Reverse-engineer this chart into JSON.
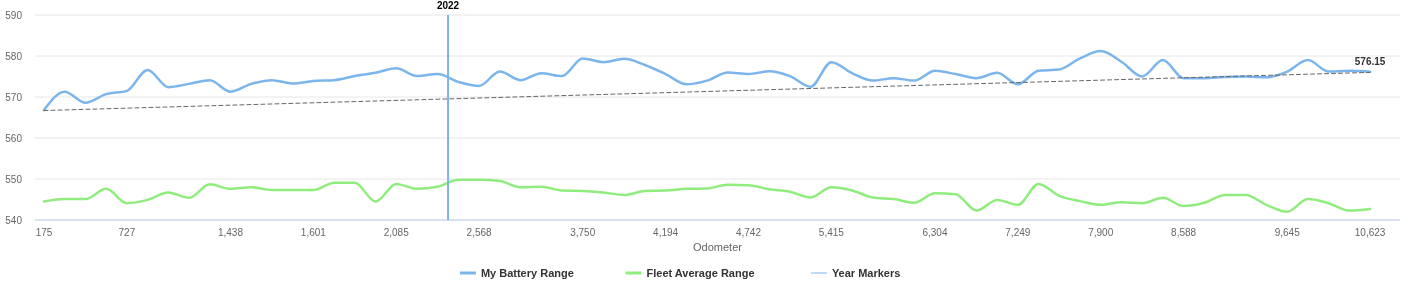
{
  "chart_data": {
    "type": "line",
    "xlabel": "Odometer",
    "categories": [
      "175",
      null,
      null,
      null,
      "727",
      null,
      null,
      null,
      null,
      "1,438",
      null,
      null,
      null,
      "1,601",
      null,
      null,
      null,
      "2,085",
      null,
      null,
      null,
      "2,568",
      null,
      null,
      null,
      null,
      "3,750",
      null,
      null,
      null,
      "4,194",
      null,
      null,
      null,
      "4,742",
      null,
      null,
      null,
      "5,415",
      null,
      null,
      null,
      null,
      "6,304",
      null,
      null,
      null,
      "7,249",
      null,
      null,
      null,
      "7,900",
      null,
      null,
      null,
      "8,588",
      null,
      null,
      null,
      null,
      "9,645",
      null,
      null,
      null,
      "10,623"
    ],
    "series": [
      {
        "name": "My Battery Range",
        "color": "#7cb5ec",
        "values": [
          566.8,
          571.3,
          568.6,
          570.7,
          571.5,
          576.6,
          572.4,
          573.2,
          574.1,
          571.3,
          573.2,
          574.1,
          573.3,
          573.9,
          574.1,
          575.1,
          575.9,
          577.0,
          575.1,
          575.6,
          573.7,
          572.7,
          576.2,
          574.1,
          575.8,
          575.1,
          579.4,
          578.5,
          579.3,
          577.8,
          575.6,
          573.1,
          574.0,
          576.0,
          575.6,
          576.3,
          575.1,
          572.5,
          578.5,
          575.8,
          574.0,
          574.6,
          574.0,
          576.4,
          575.6,
          574.6,
          575.9,
          573.1,
          576.4,
          576.7,
          579.4,
          581.2,
          578.6,
          575.0,
          579.0,
          574.6,
          574.6,
          574.9,
          575.0,
          574.8,
          576.2,
          579.0,
          576.2,
          576.4,
          576.15
        ]
      },
      {
        "name": "Fleet Average Range",
        "color": "#90ed7d",
        "values": [
          544.5,
          545.1,
          545.1,
          547.6,
          544.1,
          544.9,
          546.7,
          545.4,
          548.7,
          547.6,
          548.0,
          547.3,
          547.3,
          547.3,
          549.1,
          549.1,
          544.5,
          548.8,
          547.6,
          548.1,
          549.8,
          549.8,
          549.5,
          548.0,
          548.1,
          547.2,
          547.1,
          546.7,
          546.1,
          547.1,
          547.2,
          547.6,
          547.7,
          548.6,
          548.5,
          547.5,
          546.9,
          545.5,
          548.0,
          547.2,
          545.5,
          545.1,
          544.2,
          546.5,
          546.3,
          542.3,
          544.9,
          543.7,
          548.8,
          545.9,
          544.6,
          543.7,
          544.3,
          544.1,
          545.4,
          543.4,
          544.2,
          546.1,
          546.1,
          543.7,
          542.0,
          545.1,
          544.1,
          542.3,
          542.7
        ]
      },
      {
        "name": "Year Markers",
        "color": "#7cb5ec",
        "values": [
          null,
          null,
          null,
          null,
          null,
          null,
          null,
          null,
          null,
          null,
          null,
          null,
          null,
          null,
          null,
          null,
          null,
          null,
          null,
          null,
          null,
          null,
          null,
          null,
          null,
          null,
          null,
          null,
          null,
          null,
          null,
          null,
          null,
          null,
          null,
          null,
          null,
          null,
          null,
          null,
          null,
          null,
          null,
          null,
          null,
          null,
          null,
          null,
          null,
          null,
          null,
          null,
          null,
          null,
          null,
          null,
          null,
          null,
          null,
          null,
          null,
          null,
          null,
          null,
          null
        ]
      },
      {
        "color": "#666666",
        "line_style": "dashed",
        "x": [
          "175",
          "10,623"
        ],
        "values": [
          566.7,
          576.0
        ]
      }
    ],
    "annotations": [
      "2022",
      {
        "text": "576.15",
        "x": "10,623",
        "y": 576.15
      }
    ],
    "ylim": [
      540,
      590
    ],
    "yticks": [
      540,
      550,
      560,
      570,
      580,
      590
    ],
    "grid": "y",
    "legend": "bottom",
    "marker": "none"
  }
}
